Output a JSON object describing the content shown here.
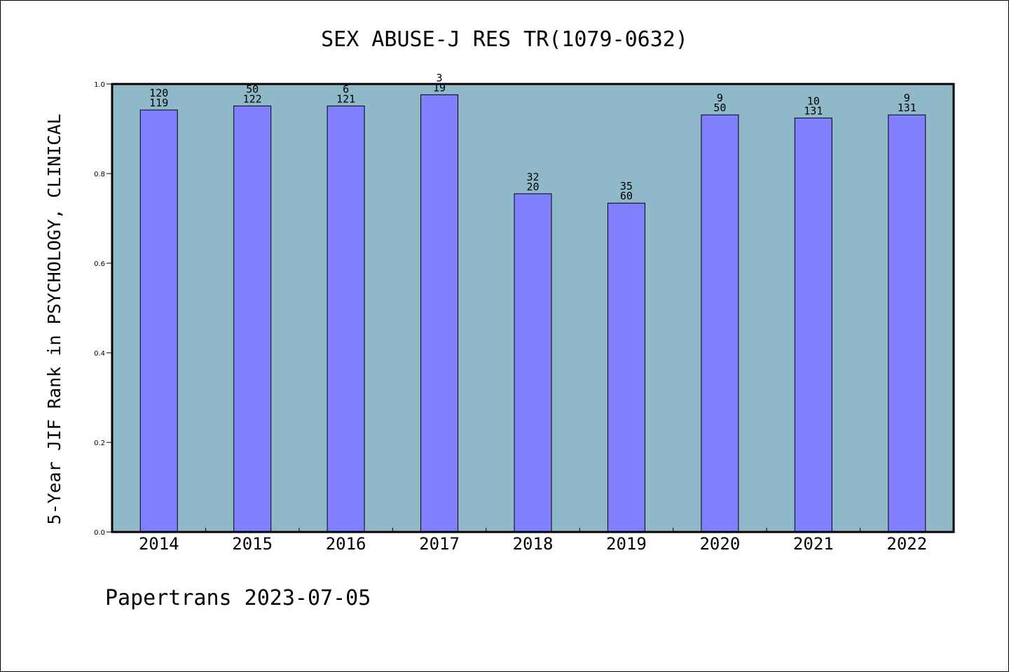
{
  "chart_data": {
    "type": "bar",
    "title": "SEX ABUSE-J RES TR(1079-0632)",
    "xlabel": "",
    "ylabel": "5-Year JIF Rank in PSYCHOLOGY, CLINICAL",
    "categories": [
      "2014",
      "2015",
      "2016",
      "2017",
      "2018",
      "2019",
      "2020",
      "2021",
      "2022"
    ],
    "values": [
      0.942,
      0.951,
      0.951,
      0.976,
      0.755,
      0.734,
      0.931,
      0.924,
      0.931
    ],
    "labels_top": [
      "120",
      "50",
      "6",
      "3",
      "32",
      "35",
      "9",
      "10",
      "9"
    ],
    "labels_bottom": [
      "119",
      "122",
      "121",
      "19",
      "20",
      "60",
      "50",
      "131",
      "131"
    ],
    "ylim": [
      0,
      1.0
    ],
    "yticks": [
      "0.0",
      "0.2",
      "0.4",
      "0.6",
      "0.8",
      "1.0"
    ],
    "grid": false,
    "colors": {
      "plot_background": "#8fb8c8",
      "bar_fill": "#8080ff",
      "bar_edge": "#000000"
    }
  },
  "footer": {
    "text": "Papertrans 2023-07-05"
  }
}
